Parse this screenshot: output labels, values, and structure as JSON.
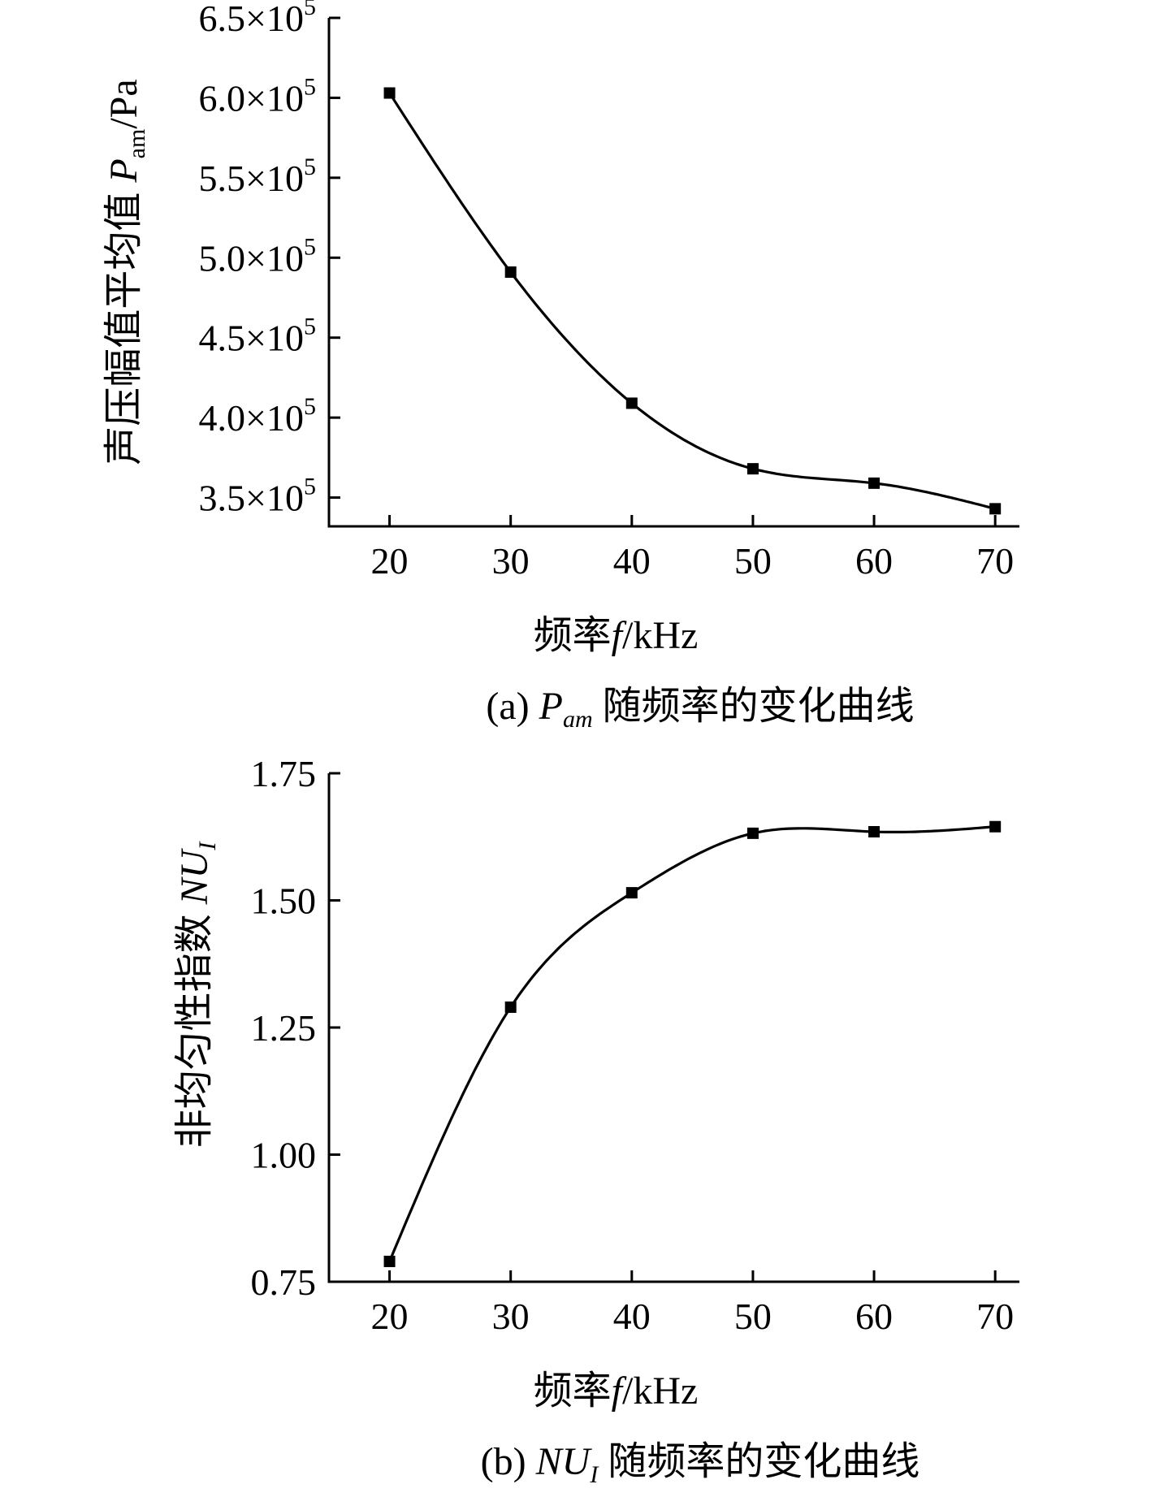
{
  "chart_data": [
    {
      "type": "scatter",
      "panel": "a",
      "x": [
        20,
        30,
        40,
        50,
        60,
        70
      ],
      "y": [
        603000,
        491000,
        409000,
        368000,
        359000,
        343000
      ],
      "fit_line": true,
      "xlim": [
        15,
        72
      ],
      "ylim": [
        332000,
        650000
      ],
      "xticks": [
        "20",
        "30",
        "40",
        "50",
        "60",
        "70"
      ],
      "xtick_values": [
        20,
        30,
        40,
        50,
        60,
        70
      ],
      "yticks": [
        {
          "value": 350000,
          "mant": "3.5×10",
          "exp": "5"
        },
        {
          "value": 400000,
          "mant": "4.0×10",
          "exp": "5"
        },
        {
          "value": 450000,
          "mant": "4.5×10",
          "exp": "5"
        },
        {
          "value": 500000,
          "mant": "5.0×10",
          "exp": "5"
        },
        {
          "value": 550000,
          "mant": "5.5×10",
          "exp": "5"
        },
        {
          "value": 600000,
          "mant": "6.0×10",
          "exp": "5"
        },
        {
          "value": 650000,
          "mant": "6.5×10",
          "exp": "5"
        }
      ],
      "xlabel": {
        "pre": "频率",
        "var": "f",
        "post": "/kHz"
      },
      "ylabel": {
        "pre": "声压幅值平均值 ",
        "var": "P",
        "sub": "am",
        "post": "/Pa"
      },
      "caption": {
        "pre": "(a) ",
        "var": "P",
        "sub": "am",
        "post": " 随频率的变化曲线"
      }
    },
    {
      "type": "scatter",
      "panel": "b",
      "x": [
        20,
        30,
        40,
        50,
        60,
        70
      ],
      "y": [
        0.79,
        1.29,
        1.515,
        1.632,
        1.635,
        1.645
      ],
      "fit_line": true,
      "xlim": [
        15,
        72
      ],
      "ylim": [
        0.75,
        1.75
      ],
      "xticks": [
        "20",
        "30",
        "40",
        "50",
        "60",
        "70"
      ],
      "xtick_values": [
        20,
        30,
        40,
        50,
        60,
        70
      ],
      "yticks": [
        {
          "value": 0.75,
          "label": "0.75"
        },
        {
          "value": 1.0,
          "label": "1.00"
        },
        {
          "value": 1.25,
          "label": "1.25"
        },
        {
          "value": 1.5,
          "label": "1.50"
        },
        {
          "value": 1.75,
          "label": "1.75"
        }
      ],
      "xlabel": {
        "pre": "频率",
        "var": "f",
        "post": "/kHz"
      },
      "ylabel": {
        "pre": "非均匀性指数 ",
        "var": "NU",
        "sub": "I",
        "post": ""
      },
      "caption": {
        "pre": "(b)  ",
        "var": "NU",
        "sub": "I",
        "post": " 随频率的变化曲线"
      }
    }
  ]
}
